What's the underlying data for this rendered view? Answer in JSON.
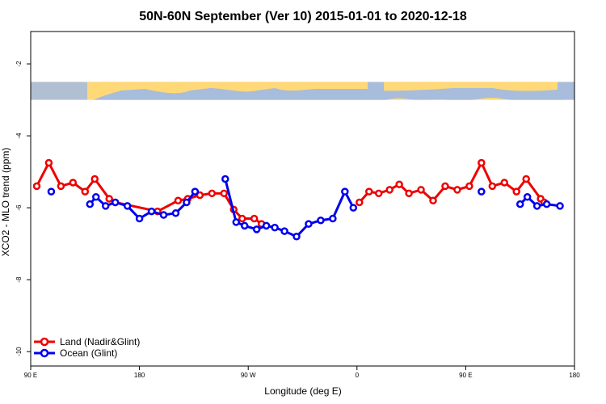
{
  "chart_data": {
    "type": "line",
    "title": "50N-60N September (Ver 10)   2015-01-01 to 2020-12-18",
    "xlabel": "Longitude (deg E)",
    "ylabel": "XCO2 - MLO trend (ppm)",
    "xlim": [
      90,
      540
    ],
    "ylim": [
      -10.4,
      -1.1
    ],
    "x_ticks": [
      {
        "value": 90,
        "label": "90 E"
      },
      {
        "value": 180,
        "label": "180"
      },
      {
        "value": 270,
        "label": "90 W"
      },
      {
        "value": 360,
        "label": "0"
      },
      {
        "value": 450,
        "label": "90 E"
      },
      {
        "value": 540,
        "label": "180"
      }
    ],
    "y_ticks": [
      {
        "value": -2,
        "label": "-2"
      },
      {
        "value": -4,
        "label": "-4"
      },
      {
        "value": -6,
        "label": "-6"
      },
      {
        "value": -8,
        "label": "-8"
      },
      {
        "value": -10,
        "label": "-10"
      }
    ],
    "map_band": {
      "y_top": -2.5,
      "y_bottom": -3.0,
      "land_color": "#ffd878",
      "ocean_color": "#a8bcdc"
    },
    "legend_position": "bottom-left",
    "series": [
      {
        "name": "Land (Nadir&Glint)",
        "color": "#ee0000",
        "points": [
          [
            95,
            -5.4
          ],
          [
            105,
            -4.75
          ],
          [
            115,
            -5.4
          ],
          [
            125,
            -5.3
          ],
          [
            135,
            -5.55
          ],
          [
            143,
            -5.2
          ],
          [
            155,
            -5.75
          ],
          [
            160,
            -5.85
          ],
          [
            195,
            -6.1
          ],
          [
            212,
            -5.8
          ],
          [
            220,
            -5.75
          ],
          [
            230,
            -5.65
          ],
          [
            240,
            -5.6
          ],
          [
            250,
            -5.6
          ],
          [
            258,
            -6.05
          ],
          [
            265,
            -6.3
          ],
          [
            275,
            -6.3
          ],
          [
            281,
            -6.45
          ],
          [
            null,
            null
          ],
          [
            362,
            -5.85
          ],
          [
            370,
            -5.55
          ],
          [
            378,
            -5.6
          ],
          [
            387,
            -5.5
          ],
          [
            395,
            -5.35
          ],
          [
            403,
            -5.6
          ],
          [
            413,
            -5.5
          ],
          [
            423,
            -5.8
          ],
          [
            433,
            -5.4
          ],
          [
            443,
            -5.5
          ],
          [
            453,
            -5.4
          ],
          [
            463,
            -4.75
          ],
          [
            472,
            -5.4
          ],
          [
            482,
            -5.3
          ],
          [
            492,
            -5.55
          ],
          [
            500,
            -5.2
          ],
          [
            512,
            -5.75
          ],
          [
            515,
            -5.85
          ]
        ]
      },
      {
        "name": "Ocean (Glint)",
        "color": "#0000ee",
        "points": [
          [
            107,
            -5.55
          ],
          [
            null,
            null
          ],
          [
            139,
            -5.9
          ],
          [
            144,
            -5.7
          ],
          [
            152,
            -5.95
          ],
          [
            160,
            -5.85
          ],
          [
            170,
            -5.95
          ],
          [
            180,
            -6.3
          ],
          [
            190,
            -6.1
          ],
          [
            200,
            -6.2
          ],
          [
            210,
            -6.15
          ],
          [
            219,
            -5.85
          ],
          [
            226,
            -5.55
          ],
          [
            null,
            null
          ],
          [
            251,
            -5.2
          ],
          [
            260,
            -6.4
          ],
          [
            267,
            -6.5
          ],
          [
            277,
            -6.6
          ],
          [
            285,
            -6.5
          ],
          [
            292,
            -6.55
          ],
          [
            300,
            -6.65
          ],
          [
            310,
            -6.8
          ],
          [
            320,
            -6.45
          ],
          [
            330,
            -6.35
          ],
          [
            340,
            -6.3
          ],
          [
            350,
            -5.55
          ],
          [
            357,
            -6.0
          ],
          [
            null,
            null
          ],
          [
            463,
            -5.55
          ],
          [
            null,
            null
          ],
          [
            495,
            -5.9
          ],
          [
            501,
            -5.7
          ],
          [
            509,
            -5.95
          ],
          [
            517,
            -5.9
          ],
          [
            528,
            -5.95
          ]
        ]
      }
    ]
  }
}
